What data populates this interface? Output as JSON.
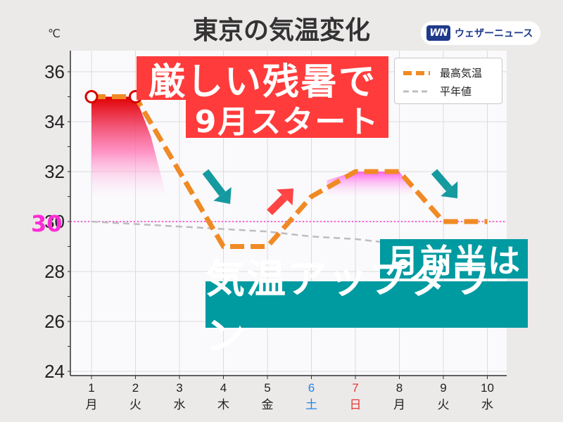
{
  "brand": {
    "logo": "WN",
    "name": "ウェザーニュース"
  },
  "title": "東京の気温変化",
  "unit": "℃",
  "reference_label": "30",
  "banners": {
    "red_line1": "厳しい残暑で",
    "red_line2": "9月スタート",
    "teal_line1": "月前半は",
    "teal_line2": "気温アップダウン"
  },
  "legend": {
    "series1": "最高気温",
    "series2": "平年値"
  },
  "colors": {
    "max_temp_line": "#f08a24",
    "normal_line": "#bdbdbd",
    "reference_line": "#ff2bd6",
    "hot_marker": "#d40000",
    "banner_red": "#ff3b3b",
    "banner_teal": "#009aa1",
    "arrow_teal": "#159aa0",
    "arrow_red": "#ff4444",
    "weekday_sat": "#1e88e5",
    "weekday_sun": "#e53935"
  },
  "chart_data": {
    "type": "line",
    "title": "東京の気温変化",
    "ylabel": "℃",
    "ylim": [
      24,
      36.5
    ],
    "yticks": [
      24,
      26,
      28,
      30,
      32,
      34,
      36
    ],
    "categories": [
      "1",
      "2",
      "3",
      "4",
      "5",
      "6",
      "7",
      "8",
      "9",
      "10"
    ],
    "weekdays": [
      "月",
      "火",
      "水",
      "木",
      "金",
      "土",
      "日",
      "月",
      "火",
      "水"
    ],
    "series": [
      {
        "name": "最高気温",
        "values": [
          35,
          35,
          32,
          29,
          29,
          31,
          32,
          32,
          30,
          30
        ]
      },
      {
        "name": "平年値",
        "values": [
          30,
          29.9,
          29.8,
          29.7,
          29.6,
          29.4,
          29.3,
          29.1,
          null,
          null
        ]
      }
    ],
    "reference_line": 30,
    "grid": true,
    "legend_position": "top-right"
  }
}
